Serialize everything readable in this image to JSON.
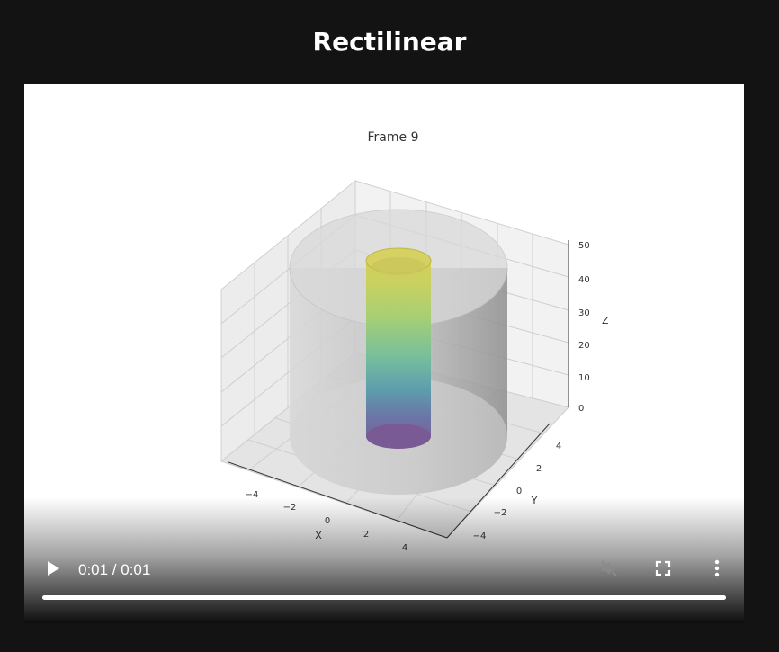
{
  "page": {
    "title": "Rectilinear"
  },
  "video": {
    "frame_title": "Frame 9",
    "axes": {
      "x_label": "X",
      "y_label": "Y",
      "z_label": "Z",
      "x_ticks": [
        "−4",
        "−2",
        "0",
        "2",
        "4"
      ],
      "y_ticks": [
        "−4",
        "−2",
        "0",
        "2",
        "4"
      ],
      "z_ticks": [
        "0",
        "10",
        "20",
        "30",
        "40",
        "50"
      ]
    },
    "controls": {
      "time": "0:01 / 0:01",
      "progress": 1.0,
      "play_icon": "play-icon",
      "mute_icon": "volume-muted-icon",
      "fullscreen_icon": "fullscreen-icon",
      "more_icon": "more-vert-icon"
    }
  },
  "colors": {
    "background": "#131313",
    "outer_cylinder": "#8c8c8c",
    "colormap_bottom": "#7a5a95",
    "colormap_top": "#d4cf5a"
  }
}
